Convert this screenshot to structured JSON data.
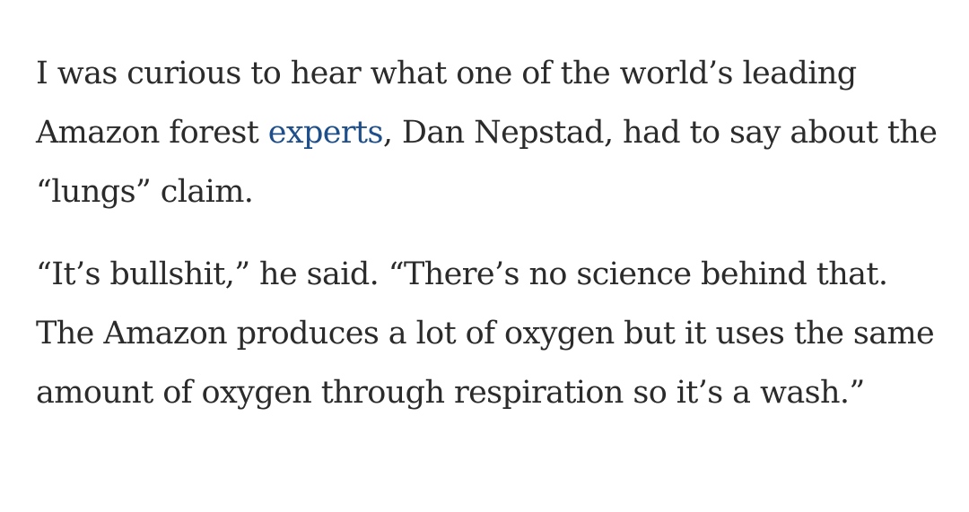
{
  "article": {
    "paragraphs": [
      {
        "before_link": "I was curious to hear what one of the world’s leading Amazon forest ",
        "link_text": "experts",
        "after_link": ", Dan Nepstad, had to say about the “lungs” claim."
      },
      {
        "text": "“It’s bullshit,” he said. “There’s no science behind that. The Amazon produces a lot of oxygen but it uses the same amount of oxygen through respiration so it’s a wash.”"
      }
    ],
    "colors": {
      "text": "#2b2b2b",
      "link": "#1e4f8a",
      "background": "#ffffff"
    }
  }
}
